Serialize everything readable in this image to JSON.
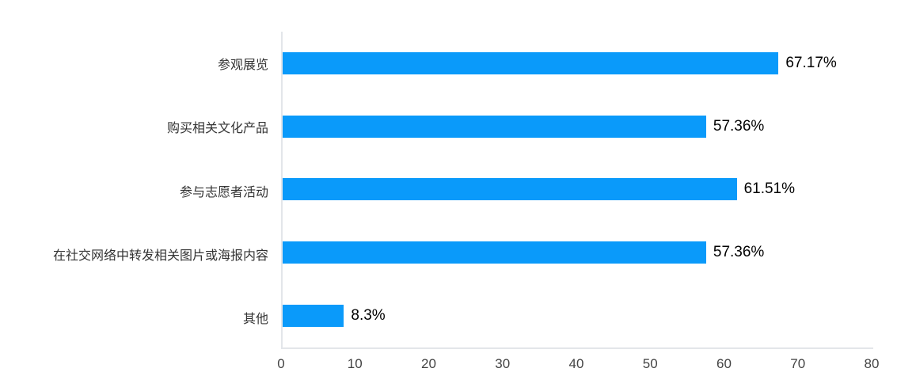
{
  "chart_data": {
    "type": "bar",
    "orientation": "horizontal",
    "title": "",
    "xlabel": "",
    "ylabel": "",
    "grid": false,
    "legend": false,
    "categories": [
      "参观展览",
      "购买相关文化产品",
      "参与志愿者活动",
      "在社交网络中转发相关图片或海报内容",
      "其他"
    ],
    "values": [
      67.17,
      57.36,
      61.51,
      57.36,
      8.3
    ],
    "value_labels": [
      "67.17%",
      "57.36%",
      "61.51%",
      "57.36%",
      "8.3%"
    ],
    "x_ticks": [
      "0",
      "10",
      "20",
      "30",
      "40",
      "50",
      "60",
      "70",
      "80"
    ],
    "xlim": [
      0,
      80
    ],
    "colors": {
      "bar": "#0a9afa",
      "axis_line": "#e3e6ea",
      "tick_text": "#444444",
      "category_text": "#333333",
      "value_text": "#000000"
    }
  }
}
